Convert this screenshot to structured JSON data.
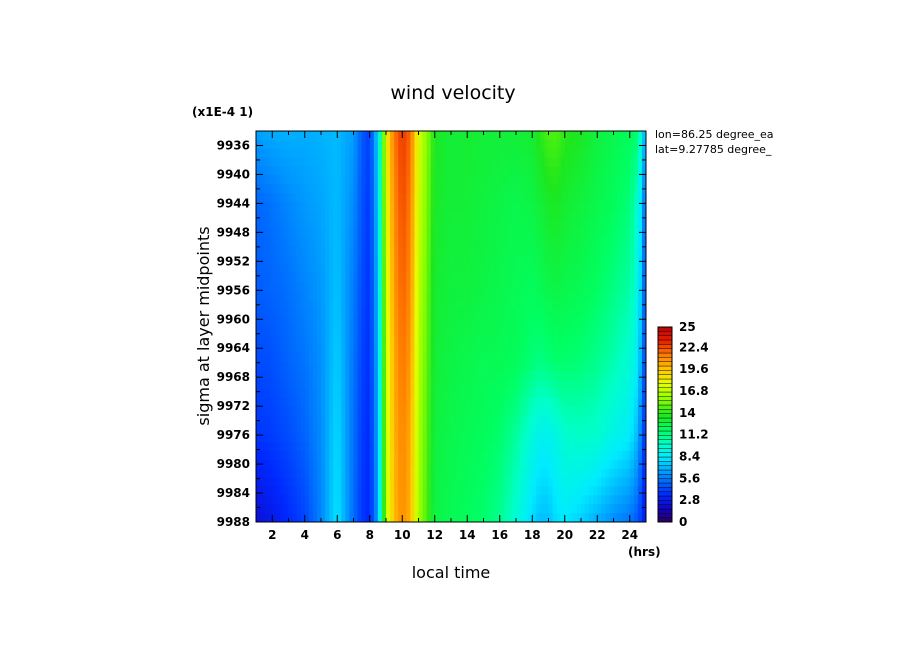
{
  "chart_data": {
    "type": "heatmap",
    "title": "wind velocity",
    "xlabel": "local time",
    "x_unit": "(hrs)",
    "ylabel": "sigma at layer midpoints",
    "y_multiplier": "(x1E-4 1)",
    "xlim": [
      1,
      25
    ],
    "ylim": [
      9934,
      9988
    ],
    "y_inverted": true,
    "x_ticks": [
      2,
      4,
      6,
      8,
      10,
      12,
      14,
      16,
      18,
      20,
      22,
      24
    ],
    "x_tick_labels": [
      "2",
      "4",
      "6",
      "8",
      "10",
      "12",
      "14",
      "16",
      "18",
      "20",
      "22",
      "24"
    ],
    "y_ticks": [
      9936,
      9940,
      9944,
      9948,
      9952,
      9956,
      9960,
      9964,
      9968,
      9972,
      9976,
      9980,
      9984,
      9988
    ],
    "y_tick_labels": [
      "9936",
      "9940",
      "9944",
      "9948",
      "9952",
      "9956",
      "9960",
      "9964",
      "9968",
      "9972",
      "9976",
      "9980",
      "9984",
      "9988"
    ],
    "annotations": [
      "lon=86.25 degree_ea",
      "lat=9.27785 degree_"
    ],
    "colorbar": {
      "min": 0,
      "max": 25,
      "tick_values": [
        0,
        2.8,
        5.6,
        8.4,
        11.2,
        14,
        16.8,
        19.6,
        22.4,
        25
      ],
      "tick_labels": [
        "0",
        "2.8",
        "5.6",
        "8.4",
        "11.2",
        "14",
        "16.8",
        "19.6",
        "22.4",
        "25"
      ]
    },
    "grid": false,
    "legend": "colorbar-right",
    "times": [
      1,
      2,
      3,
      4,
      5,
      6,
      7,
      7.5,
      8,
      8.5,
      9,
      9.5,
      10,
      10.5,
      11,
      11.5,
      12,
      13,
      14,
      15,
      16,
      17,
      18,
      18.5,
      19,
      19.5,
      20,
      21,
      22,
      23,
      24,
      24.5,
      25
    ],
    "sigma_levels": [
      9934,
      9944,
      9956,
      9966,
      9976,
      9988
    ],
    "values": [
      [
        6.5,
        6.8,
        6.9,
        6.8,
        6.9,
        7.1,
        6.4,
        4.8,
        4.0,
        7.8,
        18.0,
        21.5,
        22.8,
        21.8,
        17.5,
        15.8,
        13.6,
        13.0,
        13.2,
        13.0,
        13.0,
        13.0,
        13.2,
        14.0,
        14.6,
        14.6,
        14.0,
        13.6,
        12.8,
        12.4,
        12.0,
        11.6,
        6.0
      ],
      [
        5.0,
        5.4,
        5.9,
        6.3,
        6.6,
        7.1,
        6.0,
        4.6,
        3.8,
        7.5,
        17.6,
        21.0,
        22.4,
        21.4,
        17.2,
        15.5,
        13.4,
        13.0,
        13.0,
        12.8,
        12.6,
        12.4,
        12.6,
        13.0,
        13.4,
        13.6,
        13.2,
        12.8,
        12.4,
        12.0,
        11.4,
        9.8,
        4.6
      ],
      [
        4.8,
        5.0,
        5.3,
        5.8,
        6.3,
        7.3,
        5.6,
        4.4,
        3.7,
        7.2,
        17.2,
        20.6,
        22.0,
        21.0,
        16.8,
        15.2,
        13.2,
        12.8,
        12.8,
        12.6,
        12.4,
        12.2,
        12.0,
        12.2,
        12.4,
        12.6,
        12.4,
        12.2,
        11.8,
        11.2,
        10.6,
        9.2,
        4.0
      ],
      [
        4.3,
        4.5,
        5.0,
        5.4,
        6.1,
        7.6,
        5.4,
        4.2,
        3.6,
        7.0,
        17.0,
        20.2,
        21.6,
        20.6,
        16.6,
        15.0,
        13.0,
        12.6,
        12.4,
        12.2,
        12.2,
        12.0,
        11.4,
        11.2,
        11.4,
        11.6,
        11.6,
        11.4,
        11.0,
        10.4,
        9.6,
        8.4,
        3.6
      ],
      [
        3.8,
        4.0,
        4.4,
        5.0,
        6.0,
        7.9,
        5.3,
        4.0,
        3.5,
        6.8,
        16.8,
        20.0,
        21.2,
        20.2,
        16.4,
        14.8,
        12.8,
        12.4,
        12.2,
        12.0,
        11.6,
        10.8,
        9.4,
        8.8,
        8.8,
        9.2,
        9.8,
        10.0,
        9.8,
        9.0,
        8.4,
        7.0,
        3.2
      ],
      [
        2.2,
        2.8,
        3.5,
        4.2,
        5.8,
        8.2,
        5.2,
        3.9,
        3.4,
        6.6,
        16.6,
        19.8,
        21.0,
        20.0,
        16.2,
        14.6,
        12.6,
        12.2,
        12.0,
        11.6,
        11.0,
        9.6,
        7.8,
        7.2,
        7.2,
        8.0,
        8.2,
        7.6,
        6.8,
        6.0,
        5.4,
        4.6,
        2.6
      ]
    ]
  }
}
